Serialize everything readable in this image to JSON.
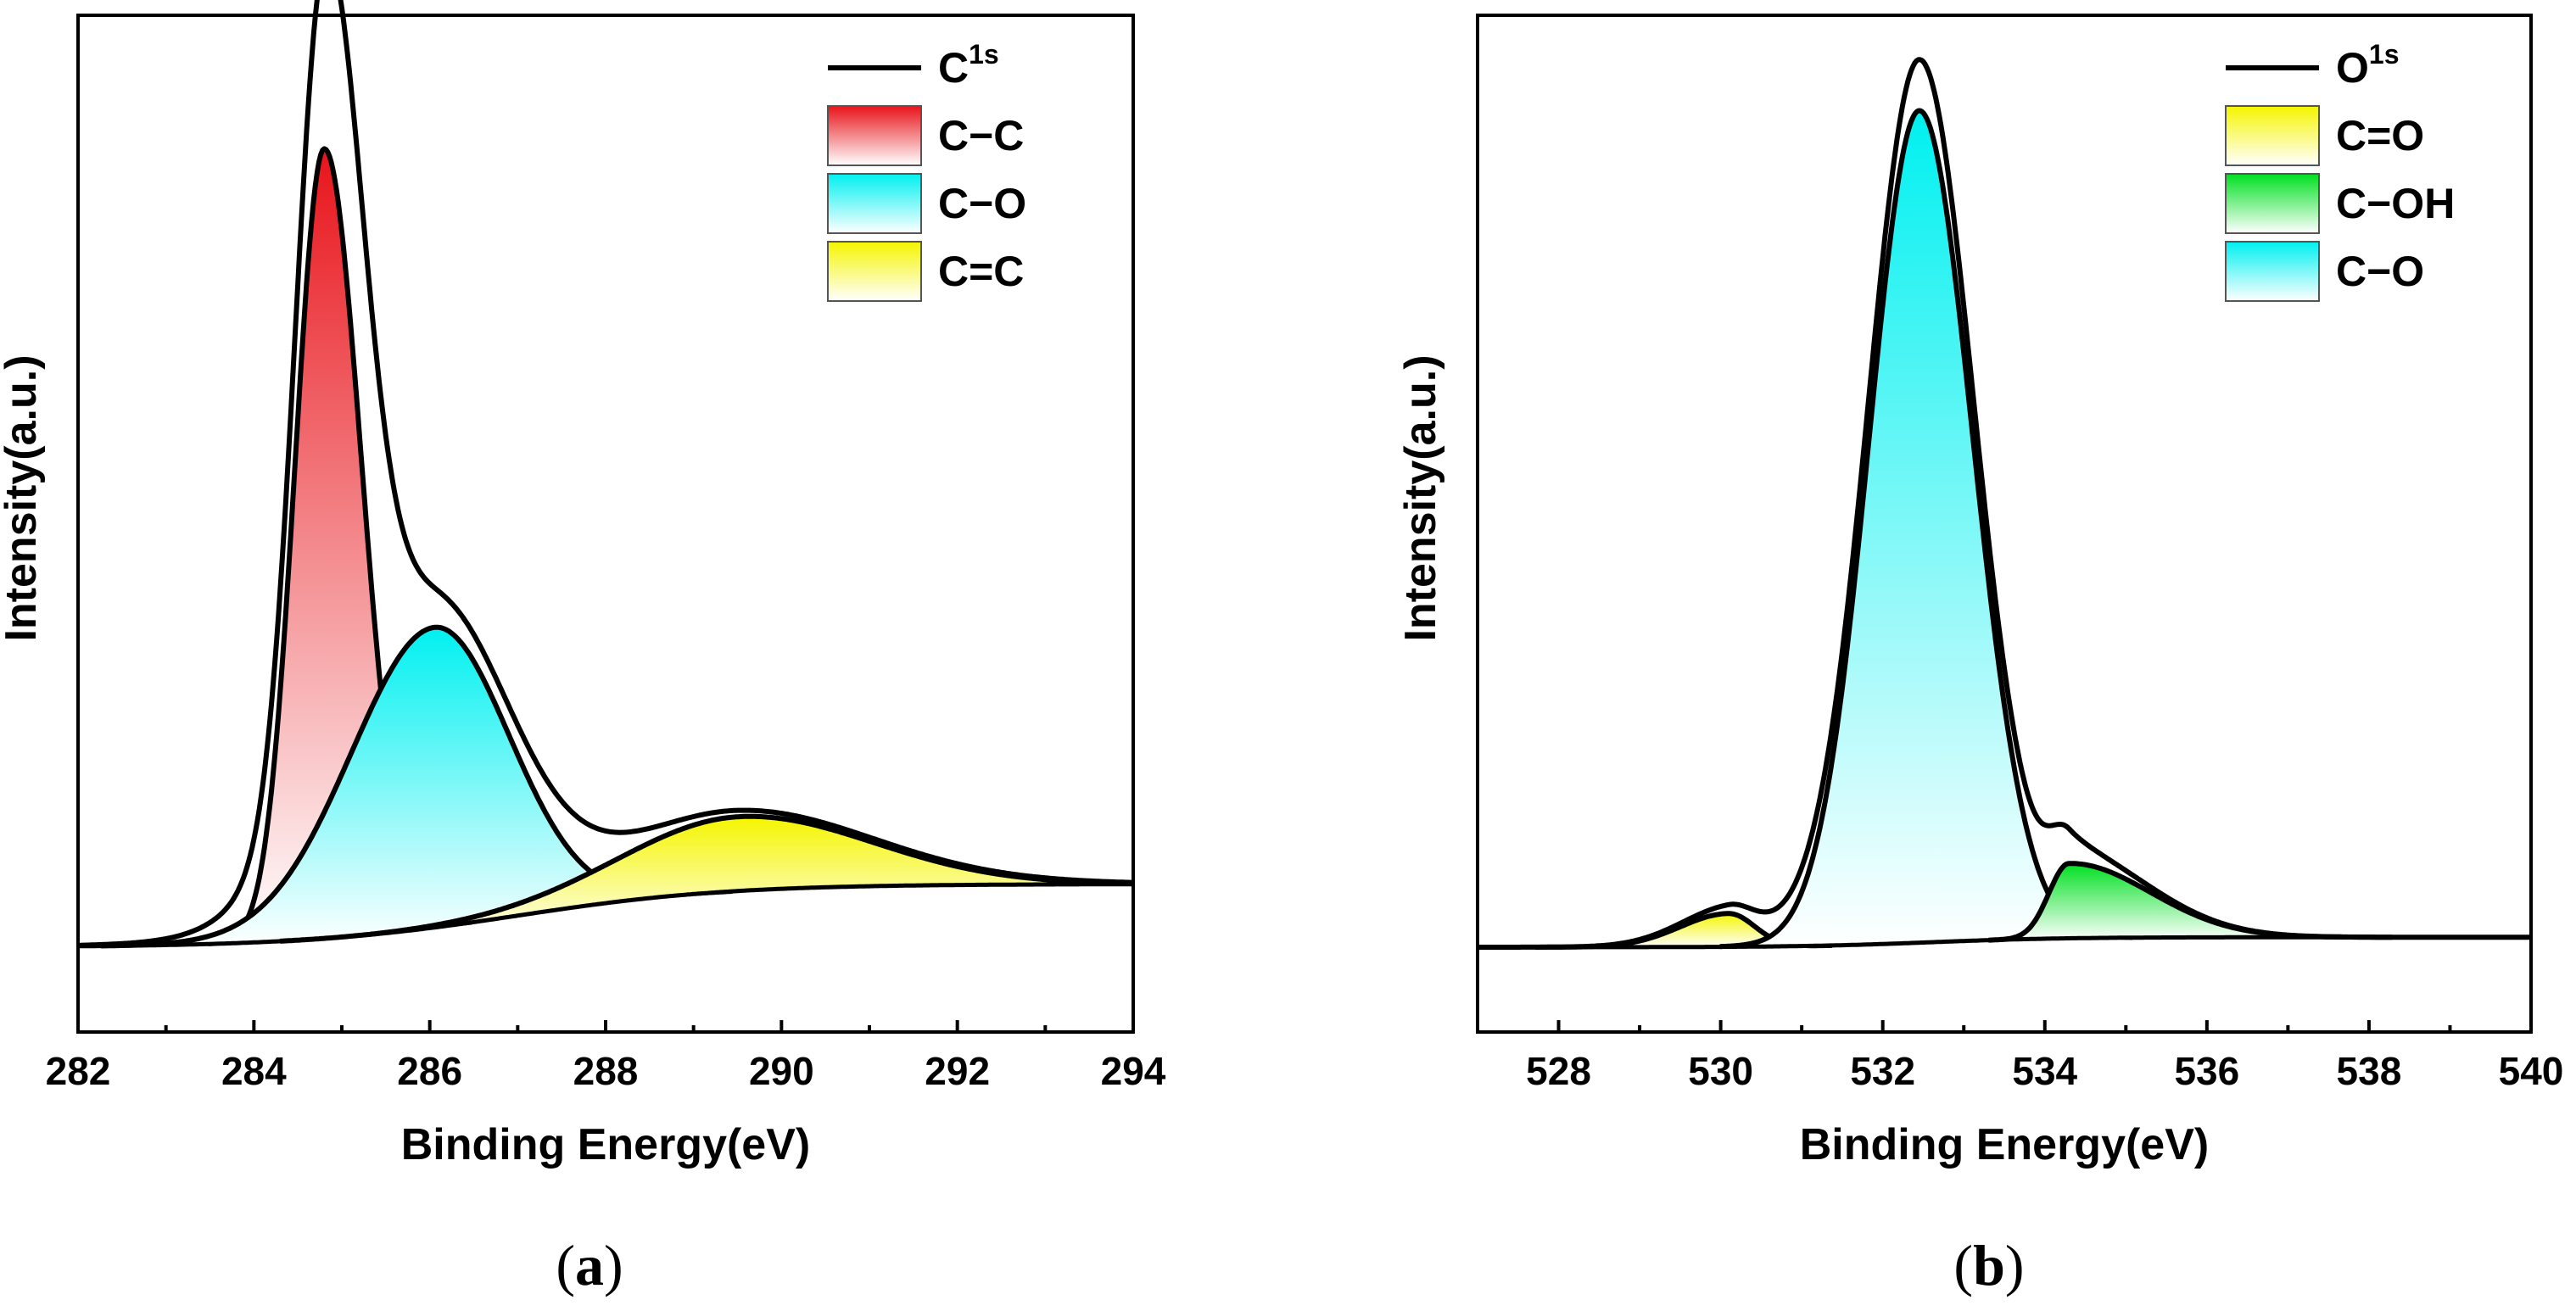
{
  "figure_captions": [
    "(a)",
    "(b)"
  ],
  "colors": {
    "C-C": "#e8141b",
    "C-O": "#00f0f0",
    "C=C": "#f5f500",
    "C=O": "#f5f500",
    "C-OH": "#00e020",
    "line": "#000000"
  },
  "chart_data": [
    {
      "type": "area",
      "panel": "a",
      "caption_letter": "a",
      "xlabel": "Binding Energy(eV)",
      "ylabel": "Intensity(a.u.)",
      "xlim": [
        282,
        294
      ],
      "ylim": [
        0,
        1.18
      ],
      "xticks": [
        "282",
        "284",
        "286",
        "288",
        "290",
        "292",
        "294"
      ],
      "xtick_values": [
        282,
        284,
        286,
        288,
        290,
        292,
        294
      ],
      "legend_position": "top-right",
      "baseline": {
        "x0": 283.2,
        "x1": 294,
        "y0": 0.0,
        "y1": 0.08,
        "center": 287.0,
        "width": 1.2
      },
      "envelope": {
        "name": "C",
        "superscript": "1s"
      },
      "components": [
        {
          "name": "C−C",
          "color_key": "C-C",
          "center": 284.8,
          "height": 1.0,
          "width_left": 0.33,
          "width_right": 0.42
        },
        {
          "name": "C−O",
          "color_key": "C-O",
          "center": 286.05,
          "height": 0.38,
          "width_left": 0.95,
          "width_right": 0.85
        },
        {
          "name": "C=C",
          "color_key": "C=C",
          "center": 289.5,
          "height": 0.094,
          "width_left": 1.3,
          "width_right": 1.5
        }
      ],
      "legend_entries": [
        {
          "label": "C",
          "sup": "1s",
          "kind": "line"
        },
        {
          "label": "C−C",
          "kind": "fill",
          "color_key": "C-C"
        },
        {
          "label": "C−O",
          "kind": "fill",
          "color_key": "C-O"
        },
        {
          "label": "C=C",
          "kind": "fill",
          "color_key": "C=C"
        }
      ]
    },
    {
      "type": "area",
      "panel": "b",
      "caption_letter": "b",
      "xlabel": "Binding Energy(eV)",
      "ylabel": "Intensity(a.u.)",
      "xlim": [
        527,
        540
      ],
      "ylim": [
        0,
        1.12
      ],
      "xticks": [
        "528",
        "530",
        "532",
        "534",
        "536",
        "538",
        "540"
      ],
      "xtick_values": [
        528,
        530,
        532,
        534,
        536,
        538,
        540
      ],
      "legend_position": "top-right",
      "baseline": {
        "x0": 527,
        "x1": 540,
        "y0": 0.0,
        "y1": 0.012,
        "center": 532.6,
        "width": 0.8
      },
      "envelope": {
        "name": "O",
        "superscript": "1s"
      },
      "components": [
        {
          "name": "C=O",
          "color_key": "C=O",
          "center": 530.1,
          "height": 0.04,
          "width_left": 0.6,
          "width_right": 0.32
        },
        {
          "name": "C−O",
          "color_key": "C-O",
          "center": 532.45,
          "height": 1.0,
          "width_left": 0.62,
          "width_right": 0.66
        },
        {
          "name": "C−OH",
          "color_key": "C-OH",
          "center": 534.3,
          "height": 0.09,
          "width_left": 0.25,
          "width_right": 1.0
        }
      ],
      "legend_entries": [
        {
          "label": "O",
          "sup": "1s",
          "kind": "line"
        },
        {
          "label": "C=O",
          "kind": "fill",
          "color_key": "C=O"
        },
        {
          "label": "C−OH",
          "kind": "fill",
          "color_key": "C-OH"
        },
        {
          "label": "C−O",
          "kind": "fill",
          "color_key": "C-O"
        }
      ]
    }
  ]
}
